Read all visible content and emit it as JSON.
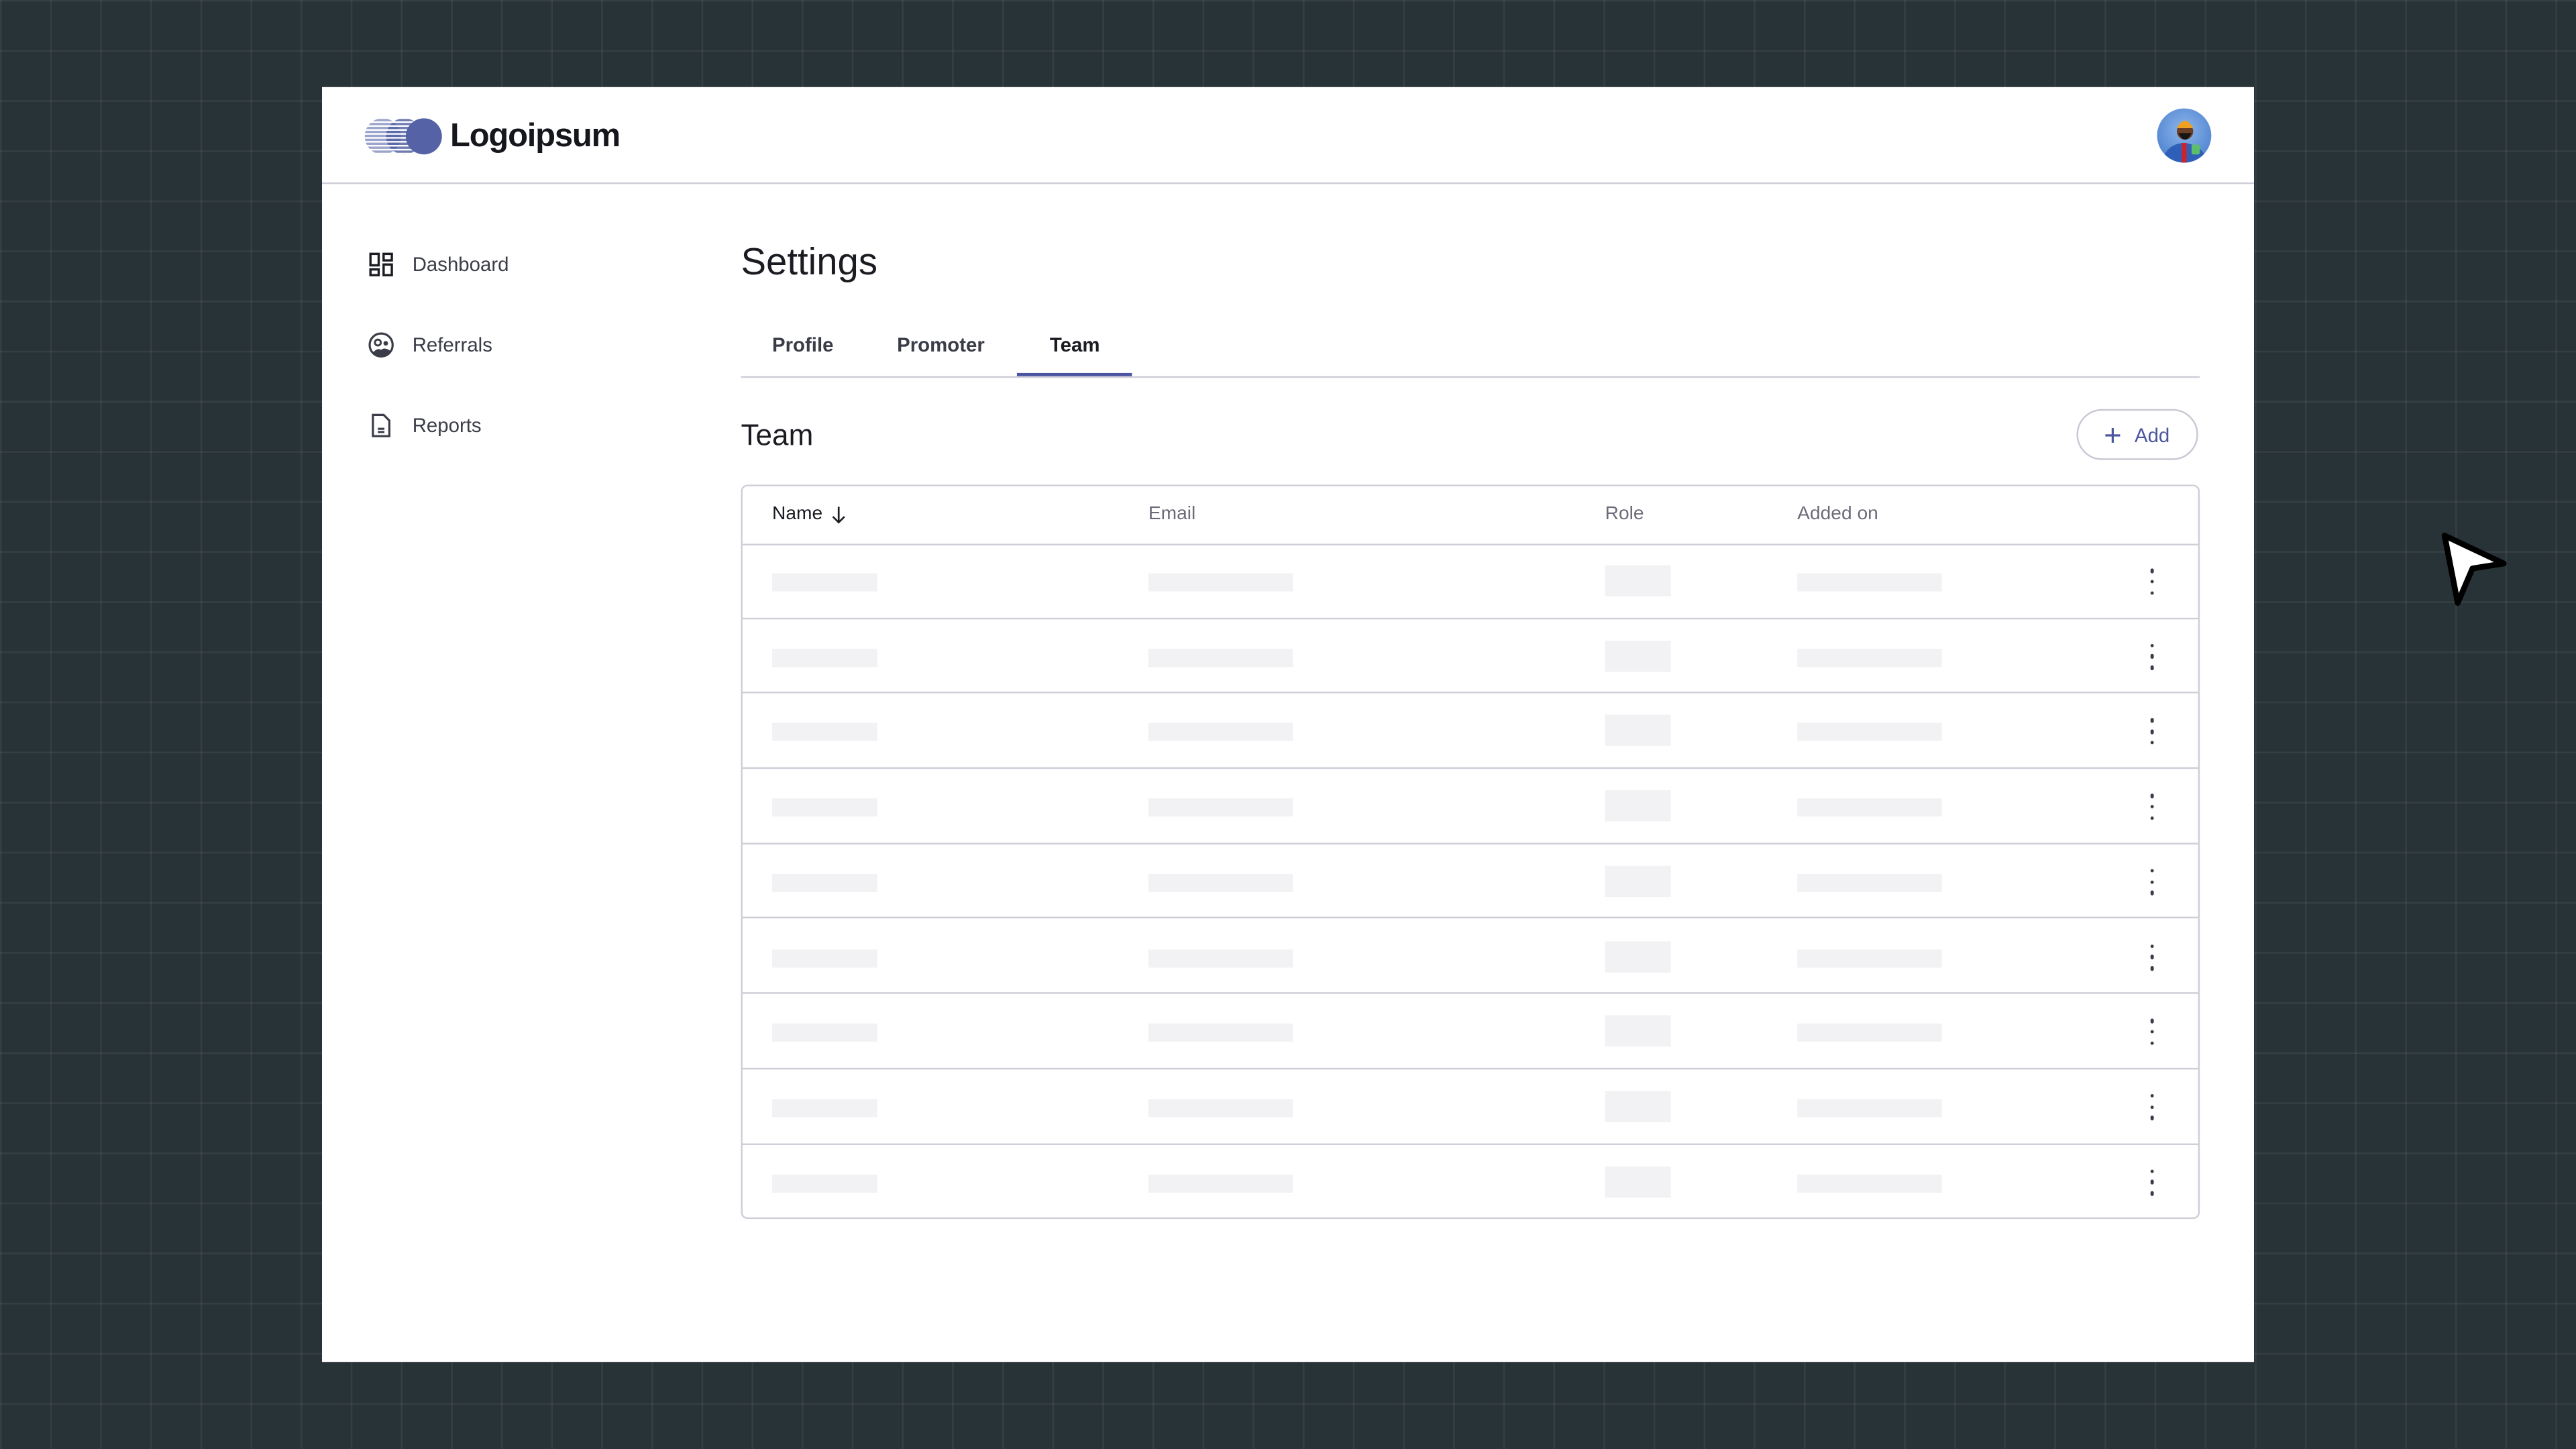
{
  "brand": {
    "name": "Logoipsum",
    "color": "#4b55a0"
  },
  "header": {
    "avatar": "user-avatar"
  },
  "sidebar": {
    "items": [
      {
        "label": "Dashboard",
        "icon": "dashboard-icon"
      },
      {
        "label": "Referrals",
        "icon": "referrals-icon"
      },
      {
        "label": "Reports",
        "icon": "document-icon"
      }
    ]
  },
  "main": {
    "title": "Settings",
    "tabs": [
      {
        "label": "Profile"
      },
      {
        "label": "Promoter"
      },
      {
        "label": "Team",
        "active": true
      }
    ],
    "section_title": "Team",
    "add_label": "Add",
    "table": {
      "columns": [
        "Name",
        "Email",
        "Role",
        "Added on"
      ],
      "sort": {
        "column": "Name",
        "direction": "descending"
      },
      "row_count": 9,
      "rows_loading": true
    }
  }
}
